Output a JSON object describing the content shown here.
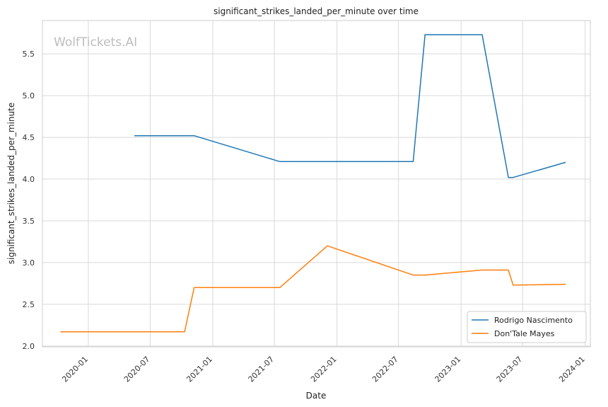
{
  "chart_data": {
    "type": "line",
    "title": "significant_strikes_landed_per_minute over time",
    "xlabel": "Date",
    "ylabel": "significant_strikes_landed_per_minute",
    "watermark": "WolfTickets.AI",
    "x_ticks": [
      "2020-01",
      "2020-07",
      "2021-01",
      "2021-07",
      "2022-01",
      "2022-07",
      "2023-01",
      "2023-07",
      "2024-01"
    ],
    "y_ticks": [
      "2.0",
      "2.5",
      "3.0",
      "3.5",
      "4.0",
      "4.5",
      "5.0",
      "5.5"
    ],
    "ylim": [
      1.99,
      5.9
    ],
    "xlim": [
      "2019-08-19",
      "2024-01-16"
    ],
    "grid": true,
    "legend_position": "lower-right",
    "series": [
      {
        "name": "Rodrigo Nascimento",
        "color": "#1f77b4",
        "points": [
          [
            "2020-05-16",
            4.52
          ],
          [
            "2020-11-07",
            4.52
          ],
          [
            "2021-07-17",
            4.21
          ],
          [
            "2022-08-13",
            4.21
          ],
          [
            "2022-09-17",
            5.73
          ],
          [
            "2023-03-04",
            5.73
          ],
          [
            "2023-05-20",
            4.02
          ],
          [
            "2023-06-03",
            4.02
          ],
          [
            "2023-11-04",
            4.2
          ]
        ]
      },
      {
        "name": "Don'Tale Mayes",
        "color": "#ff7f0e",
        "points": [
          [
            "2019-10-12",
            2.17
          ],
          [
            "2020-10-10",
            2.17
          ],
          [
            "2020-11-07",
            2.7
          ],
          [
            "2021-07-17",
            2.7
          ],
          [
            "2021-12-04",
            3.2
          ],
          [
            "2022-08-13",
            2.85
          ],
          [
            "2022-09-17",
            2.85
          ],
          [
            "2023-03-04",
            2.91
          ],
          [
            "2023-05-20",
            2.91
          ],
          [
            "2023-06-03",
            2.73
          ],
          [
            "2023-11-04",
            2.74
          ]
        ]
      }
    ]
  }
}
